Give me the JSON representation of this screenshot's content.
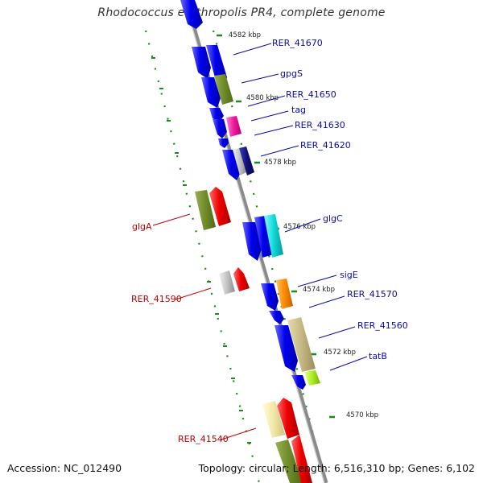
{
  "title": "Rhodococcus erythropolis PR4, complete genome",
  "footer": {
    "accession": "Accession: NC_012490",
    "summary": "Topology: circular; Length: 6,516,310 bp; Genes: 6,102"
  },
  "colors": {
    "forward_label": "#0a0aa8",
    "reverse_label": "#c00000",
    "backbone": "#8a8a8a",
    "track_dots": "#1a8a1a"
  },
  "kbp_ticks": [
    "4582 kbp",
    "4580 kbp",
    "4578 kbp",
    "4576 kbp",
    "4574 kbp",
    "4572 kbp",
    "4570 kbp"
  ],
  "forward_labels": [
    "RER_41670",
    "gpgS",
    "RER_41650",
    "tag",
    "RER_41630",
    "RER_41620",
    "glgC",
    "sigE",
    "RER_41570",
    "RER_41560",
    "tatB"
  ],
  "reverse_labels": [
    "glgA",
    "RER_41590",
    "RER_41540"
  ]
}
